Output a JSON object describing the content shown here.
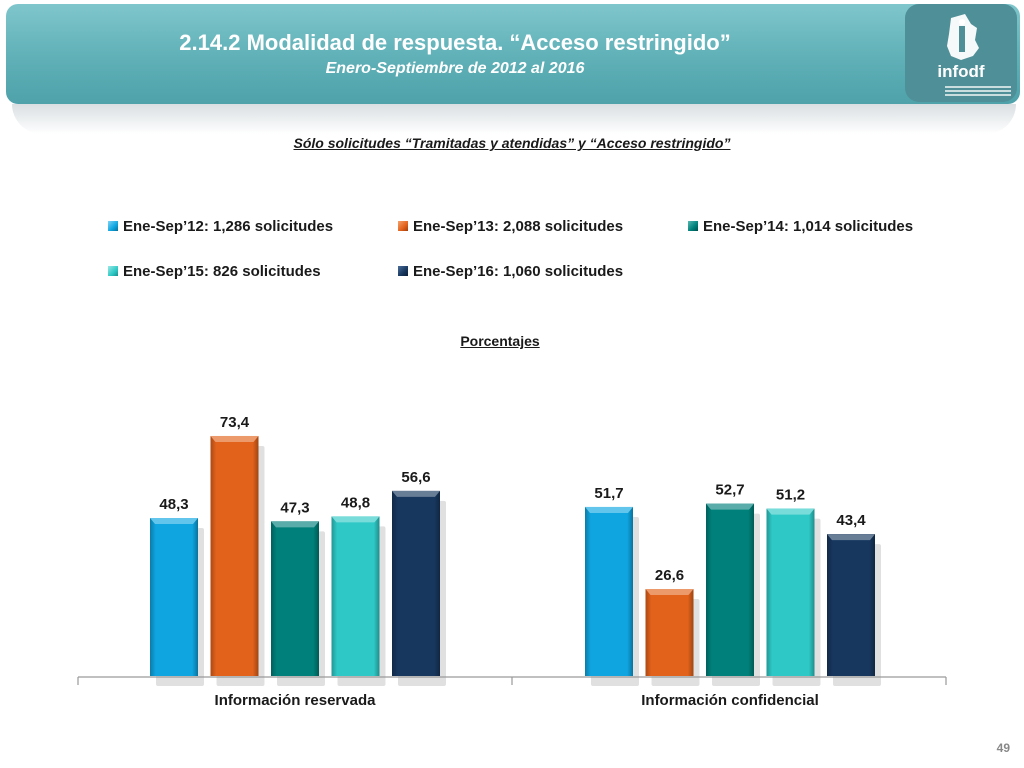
{
  "header": {
    "title": "2.14.2 Modalidad de respuesta. “Acceso restringido”",
    "subtitle": "Enero-Septiembre de 2012 al 2016",
    "logo_text": "infodf",
    "logo_icon": "emblem-icon",
    "color": "#6ab8be"
  },
  "section_title": "Sólo solicitudes “Tramitadas y atendidas” y “Acceso restringido”",
  "percent_label": "Porcentajes",
  "page_number": "49",
  "chart_data": {
    "type": "bar",
    "categories": [
      "Información reservada",
      "Información confidencial"
    ],
    "series": [
      {
        "name": "Ene-Sep’12: 1,286 solicitudes",
        "values": [
          48.3,
          51.7
        ],
        "labels": [
          "48,3",
          "51,7"
        ],
        "color": "#0ea5e0"
      },
      {
        "name": "Ene-Sep’13: 2,088 solicitudes",
        "values": [
          73.4,
          26.6
        ],
        "labels": [
          "73,4",
          "26,6"
        ],
        "color": "#e2621b"
      },
      {
        "name": "Ene-Sep’14: 1,014 solicitudes",
        "values": [
          47.3,
          52.7
        ],
        "labels": [
          "47,3",
          "52,7"
        ],
        "color": "#00807a"
      },
      {
        "name": "Ene-Sep’15: 826 solicitudes",
        "values": [
          48.8,
          51.2
        ],
        "labels": [
          "48,8",
          "51,2"
        ],
        "color": "#2ec9c6"
      },
      {
        "name": "Ene-Sep’16: 1,060 solicitudes",
        "values": [
          56.6,
          43.4
        ],
        "labels": [
          "56,6",
          "43,4"
        ],
        "color": "#17375e"
      }
    ],
    "ylim": [
      0,
      100
    ],
    "grid": false,
    "legend": "top"
  }
}
